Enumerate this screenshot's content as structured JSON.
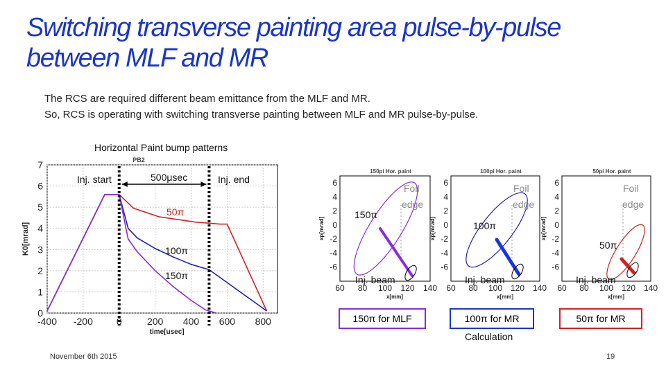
{
  "slide": {
    "title_line1": "Switching transverse painting area pulse-by-pulse",
    "title_line2": "between MLF and MR",
    "desc_line1": "The RCS are required different beam emittance from the MLF and MR.",
    "desc_line2": "So, RCS is operating with switching transverse painting between MLF and MR pulse-by-pulse.",
    "footer_date": "November 6th 2015",
    "page_number": "19",
    "calculation_label": "Calculation"
  },
  "annotations": {
    "inj_start": "Inj. start",
    "duration": "500μsec",
    "inj_end": "Inj. end",
    "label_50pi": "50π",
    "label_100pi": "100π",
    "label_150pi": "150π"
  },
  "phase_labels": {
    "p150": "150π",
    "p100": "100π",
    "p50": "50π",
    "foil_edge_1": "Foil",
    "foil_edge_2": "edge",
    "inj_beam": "Inj. beam",
    "cap150": "150π for MLF",
    "cap100": "100π for MR",
    "cap50": "50π for MR"
  },
  "chart_data": [
    {
      "type": "line",
      "heading": "Horizontal Paint bump patterns",
      "title": "PB2",
      "xlabel": "time[usec]",
      "ylabel": "K0[mrad]",
      "xlim": [
        -400,
        880
      ],
      "ylim": [
        0,
        7
      ],
      "xticks": [
        -400,
        -200,
        0,
        200,
        400,
        600,
        800
      ],
      "yticks": [
        0,
        1,
        2,
        3,
        4,
        5,
        6,
        7
      ],
      "grid": true,
      "series": [
        {
          "name": "50π",
          "color": "#d42020",
          "x": [
            -400,
            -80,
            0,
            80,
            220,
            420,
            560,
            600,
            820
          ],
          "y": [
            0.1,
            5.6,
            5.6,
            4.95,
            4.55,
            4.3,
            4.2,
            4.2,
            0.1
          ]
        },
        {
          "name": "100π",
          "color": "#2020b0",
          "x": [
            -400,
            -80,
            0,
            50,
            100,
            200,
            300,
            400,
            500,
            820
          ],
          "y": [
            0.1,
            5.6,
            5.6,
            4.0,
            3.55,
            3.05,
            2.65,
            2.3,
            2.05,
            0.1
          ]
        },
        {
          "name": "150π",
          "color": "#8a2be2",
          "x": [
            -400,
            -80,
            0,
            50,
            100,
            200,
            300,
            400,
            480,
            540
          ],
          "y": [
            0.1,
            5.6,
            5.6,
            3.5,
            2.9,
            2.0,
            1.25,
            0.6,
            0.15,
            0.0
          ]
        }
      ],
      "markers": [
        {
          "label": "Inj. start",
          "x": 0
        },
        {
          "label": "Inj. end",
          "x": 500
        }
      ]
    },
    {
      "type": "scatter",
      "title": "150pi Hor. paint",
      "xlabel": "x[mm]",
      "ylabel": "xp[mrad]",
      "xlim": [
        60,
        140
      ],
      "ylim": [
        -8,
        7
      ],
      "xticks": [
        60,
        80,
        100,
        120,
        140
      ],
      "yticks": [
        -6,
        -4,
        -2,
        0,
        2,
        4,
        6
      ],
      "ellipse_color": "#8a2be2",
      "beam_color": "#8a2be2",
      "painting_area": "150π",
      "caption": "150π for MLF"
    },
    {
      "type": "scatter",
      "title": "100pi Hor. paint",
      "xlabel": "x[mm]",
      "ylabel": "xp[mrad]",
      "xlim": [
        60,
        140
      ],
      "ylim": [
        -8,
        7
      ],
      "xticks": [
        60,
        80,
        100,
        120,
        140
      ],
      "yticks": [
        -6,
        -4,
        -2,
        0,
        2,
        4,
        6
      ],
      "ellipse_color": "#2020b0",
      "beam_color": "#1a35e0",
      "painting_area": "100π",
      "caption": "100π for MR"
    },
    {
      "type": "scatter",
      "title": "50pi Hor. paint",
      "xlabel": "x[mm]",
      "ylabel": "xp[mrad]",
      "xlim": [
        60,
        140
      ],
      "ylim": [
        -8,
        7
      ],
      "xticks": [
        60,
        80,
        100,
        120,
        140
      ],
      "yticks": [
        -6,
        -4,
        -2,
        0,
        2,
        4,
        6
      ],
      "ellipse_color": "#d42020",
      "beam_color": "#d42020",
      "painting_area": "50π",
      "caption": "50π for MR"
    }
  ]
}
